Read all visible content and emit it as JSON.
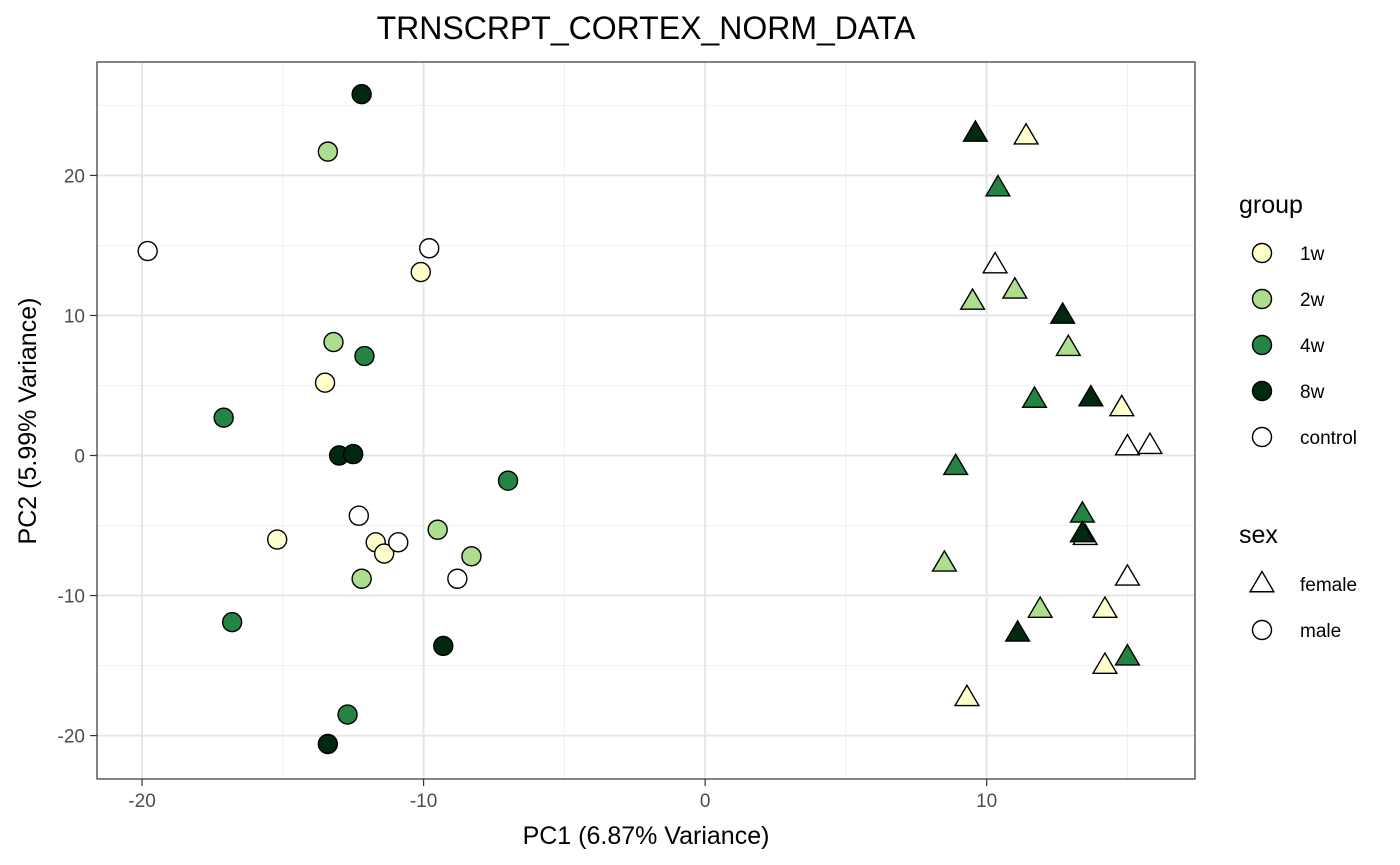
{
  "chart_data": {
    "type": "scatter",
    "title": "TRNSCRPT_CORTEX_NORM_DATA",
    "xlabel": "PC1 (6.87% Variance)",
    "ylabel": "PC2 (5.99% Variance)",
    "xlim": [
      -21.6,
      17.4
    ],
    "ylim": [
      -23.1,
      28.1
    ],
    "x_ticks": [
      -20,
      -10,
      0,
      10
    ],
    "x_tick_labels": [
      "-20",
      "-10",
      "0",
      "10"
    ],
    "y_ticks": [
      -20,
      -10,
      0,
      10,
      20
    ],
    "y_tick_labels": [
      "-20",
      "-10",
      "0",
      "10",
      "20"
    ],
    "grid": true,
    "legend_position": "right",
    "legend": {
      "group_title": "group",
      "groups": [
        {
          "label": "1w",
          "color": "#ffffcc"
        },
        {
          "label": "2w",
          "color": "#addd8e"
        },
        {
          "label": "4w",
          "color": "#238443"
        },
        {
          "label": "8w",
          "color": "#002910"
        },
        {
          "label": "control",
          "color": "#ffffff"
        }
      ],
      "sex_title": "sex",
      "sexes": [
        {
          "label": "female",
          "shape": "triangle"
        },
        {
          "label": "male",
          "shape": "circle"
        }
      ]
    },
    "points": [
      {
        "x": -12.2,
        "y": 25.8,
        "group": "8w",
        "sex": "male"
      },
      {
        "x": -13.4,
        "y": 21.7,
        "group": "2w",
        "sex": "male"
      },
      {
        "x": -19.8,
        "y": 14.6,
        "group": "control",
        "sex": "male"
      },
      {
        "x": -9.8,
        "y": 14.8,
        "group": "control",
        "sex": "male"
      },
      {
        "x": -10.1,
        "y": 13.1,
        "group": "1w",
        "sex": "male"
      },
      {
        "x": -13.2,
        "y": 8.1,
        "group": "2w",
        "sex": "male"
      },
      {
        "x": -12.1,
        "y": 7.1,
        "group": "4w",
        "sex": "male"
      },
      {
        "x": -13.5,
        "y": 5.2,
        "group": "1w",
        "sex": "male"
      },
      {
        "x": -17.1,
        "y": 2.7,
        "group": "4w",
        "sex": "male"
      },
      {
        "x": -13.0,
        "y": 0.0,
        "group": "8w",
        "sex": "male"
      },
      {
        "x": -12.5,
        "y": 0.1,
        "group": "8w",
        "sex": "male"
      },
      {
        "x": -7.0,
        "y": -1.8,
        "group": "4w",
        "sex": "male"
      },
      {
        "x": -12.3,
        "y": -4.3,
        "group": "control",
        "sex": "male"
      },
      {
        "x": -15.2,
        "y": -6.0,
        "group": "1w",
        "sex": "male"
      },
      {
        "x": -11.7,
        "y": -6.2,
        "group": "1w",
        "sex": "male"
      },
      {
        "x": -11.4,
        "y": -7.0,
        "group": "1w",
        "sex": "male"
      },
      {
        "x": -10.9,
        "y": -6.2,
        "group": "control",
        "sex": "male"
      },
      {
        "x": -9.5,
        "y": -5.3,
        "group": "2w",
        "sex": "male"
      },
      {
        "x": -8.3,
        "y": -7.2,
        "group": "2w",
        "sex": "male"
      },
      {
        "x": -12.2,
        "y": -8.8,
        "group": "2w",
        "sex": "male"
      },
      {
        "x": -8.8,
        "y": -8.8,
        "group": "control",
        "sex": "male"
      },
      {
        "x": -16.8,
        "y": -11.9,
        "group": "4w",
        "sex": "male"
      },
      {
        "x": -9.3,
        "y": -13.6,
        "group": "8w",
        "sex": "male"
      },
      {
        "x": -12.7,
        "y": -18.5,
        "group": "4w",
        "sex": "male"
      },
      {
        "x": -13.4,
        "y": -20.6,
        "group": "8w",
        "sex": "male"
      },
      {
        "x": 9.6,
        "y": 23.0,
        "group": "8w",
        "sex": "female"
      },
      {
        "x": 11.4,
        "y": 22.8,
        "group": "1w",
        "sex": "female"
      },
      {
        "x": 10.4,
        "y": 19.1,
        "group": "4w",
        "sex": "female"
      },
      {
        "x": 10.3,
        "y": 13.6,
        "group": "control",
        "sex": "female"
      },
      {
        "x": 9.5,
        "y": 11.0,
        "group": "2w",
        "sex": "female"
      },
      {
        "x": 11.0,
        "y": 11.8,
        "group": "2w",
        "sex": "female"
      },
      {
        "x": 12.7,
        "y": 10.0,
        "group": "8w",
        "sex": "female"
      },
      {
        "x": 12.9,
        "y": 7.7,
        "group": "2w",
        "sex": "female"
      },
      {
        "x": 11.7,
        "y": 4.0,
        "group": "4w",
        "sex": "female"
      },
      {
        "x": 13.7,
        "y": 4.1,
        "group": "8w",
        "sex": "female"
      },
      {
        "x": 14.8,
        "y": 3.4,
        "group": "1w",
        "sex": "female"
      },
      {
        "x": 15.0,
        "y": 0.6,
        "group": "control",
        "sex": "female"
      },
      {
        "x": 15.8,
        "y": 0.7,
        "group": "control",
        "sex": "female"
      },
      {
        "x": 8.9,
        "y": -0.8,
        "group": "4w",
        "sex": "female"
      },
      {
        "x": 13.4,
        "y": -4.2,
        "group": "4w",
        "sex": "female"
      },
      {
        "x": 13.5,
        "y": -5.8,
        "group": "control",
        "sex": "female"
      },
      {
        "x": 13.4,
        "y": -5.6,
        "group": "8w",
        "sex": "female"
      },
      {
        "x": 8.5,
        "y": -7.7,
        "group": "2w",
        "sex": "female"
      },
      {
        "x": 15.0,
        "y": -8.7,
        "group": "control",
        "sex": "female"
      },
      {
        "x": 11.9,
        "y": -11.0,
        "group": "2w",
        "sex": "female"
      },
      {
        "x": 14.2,
        "y": -11.0,
        "group": "1w",
        "sex": "female"
      },
      {
        "x": 11.1,
        "y": -12.7,
        "group": "8w",
        "sex": "female"
      },
      {
        "x": 15.0,
        "y": -14.4,
        "group": "4w",
        "sex": "female"
      },
      {
        "x": 14.2,
        "y": -15.0,
        "group": "1w",
        "sex": "female"
      },
      {
        "x": 9.3,
        "y": -17.3,
        "group": "1w",
        "sex": "female"
      }
    ]
  }
}
